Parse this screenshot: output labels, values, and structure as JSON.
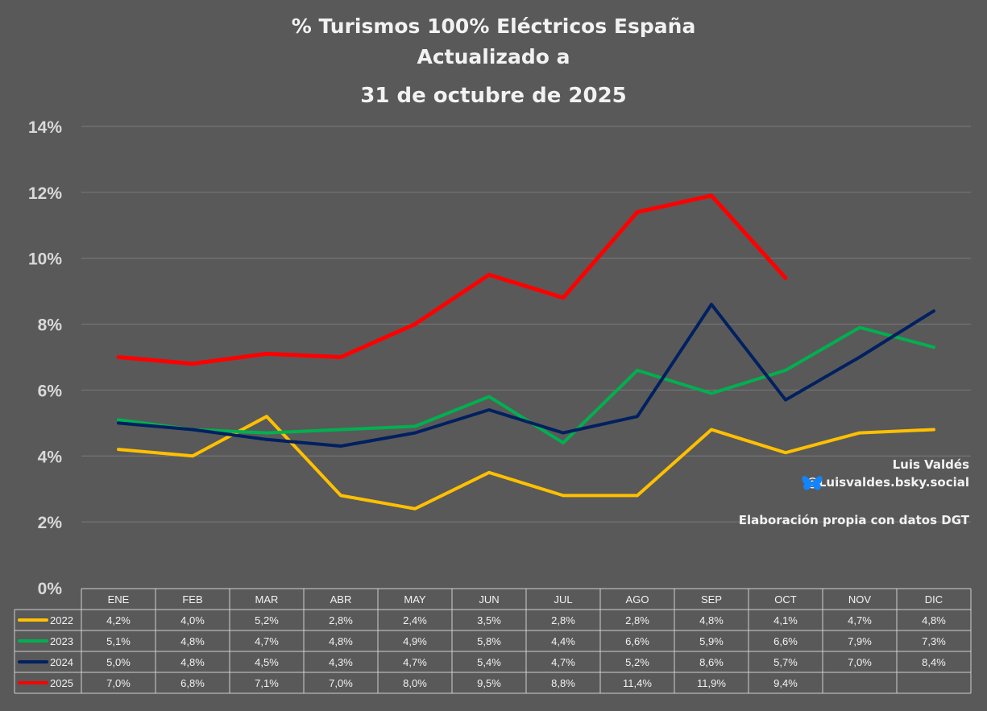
{
  "title": {
    "line1": "% Turismos 100% Eléctricos España",
    "line2": "Actualizado a",
    "line3": "31 de octubre de 2025"
  },
  "credits": {
    "author": "Luis Valdés",
    "handle": "@Luisvaldes.bsky.social",
    "source": "Elaboración propia con datos DGT"
  },
  "chart_data": {
    "type": "line",
    "categories": [
      "ENE",
      "FEB",
      "MAR",
      "ABR",
      "MAY",
      "JUN",
      "JUL",
      "AGO",
      "SEP",
      "OCT",
      "NOV",
      "DIC"
    ],
    "ylim": [
      0,
      14
    ],
    "yticks": [
      "0%",
      "2%",
      "4%",
      "6%",
      "8%",
      "10%",
      "12%",
      "14%"
    ],
    "grid": true,
    "legend": "data-table-below",
    "series": [
      {
        "name": "2022",
        "color": "#FFC000",
        "values": [
          4.2,
          4.0,
          5.2,
          2.8,
          2.4,
          3.5,
          2.8,
          2.8,
          4.8,
          4.1,
          4.7,
          4.8
        ],
        "labels": [
          "4,2%",
          "4,0%",
          "5,2%",
          "2,8%",
          "2,4%",
          "3,5%",
          "2,8%",
          "2,8%",
          "4,8%",
          "4,1%",
          "4,7%",
          "4,8%"
        ]
      },
      {
        "name": "2023",
        "color": "#00B050",
        "values": [
          5.1,
          4.8,
          4.7,
          4.8,
          4.9,
          5.8,
          4.4,
          6.6,
          5.9,
          6.6,
          7.9,
          7.3
        ],
        "labels": [
          "5,1%",
          "4,8%",
          "4,7%",
          "4,8%",
          "4,9%",
          "5,8%",
          "4,4%",
          "6,6%",
          "5,9%",
          "6,6%",
          "7,9%",
          "7,3%"
        ]
      },
      {
        "name": "2024",
        "color": "#002060",
        "values": [
          5.0,
          4.8,
          4.5,
          4.3,
          4.7,
          5.4,
          4.7,
          5.2,
          8.6,
          5.7,
          7.0,
          8.4
        ],
        "labels": [
          "5,0%",
          "4,8%",
          "4,5%",
          "4,3%",
          "4,7%",
          "5,4%",
          "4,7%",
          "5,2%",
          "8,6%",
          "5,7%",
          "7,0%",
          "8,4%"
        ]
      },
      {
        "name": "2025",
        "color": "#FF0000",
        "values": [
          7.0,
          6.8,
          7.1,
          7.0,
          8.0,
          9.5,
          8.8,
          11.4,
          11.9,
          9.4,
          null,
          null
        ],
        "labels": [
          "7,0%",
          "6,8%",
          "7,1%",
          "7,0%",
          "8,0%",
          "9,5%",
          "8,8%",
          "11,4%",
          "11,9%",
          "9,4%",
          "",
          ""
        ]
      }
    ]
  }
}
